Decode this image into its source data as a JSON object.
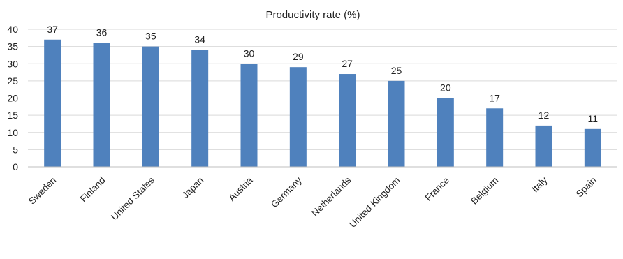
{
  "chart_data": {
    "type": "bar",
    "title": "Productivity rate (%)",
    "categories": [
      "Sweden",
      "Finland",
      "United States",
      "Japan",
      "Austria",
      "Germany",
      "Netherlands",
      "United Kingdom",
      "France",
      "Belgium",
      "Italy",
      "Spain"
    ],
    "values": [
      37,
      36,
      35,
      34,
      30,
      29,
      27,
      25,
      20,
      17,
      12,
      11
    ],
    "ylim": [
      0,
      40
    ],
    "yticks": [
      0,
      5,
      10,
      15,
      20,
      25,
      30,
      35,
      40
    ],
    "grid": true,
    "bar_color": "#4f81bd",
    "legend": "none"
  }
}
